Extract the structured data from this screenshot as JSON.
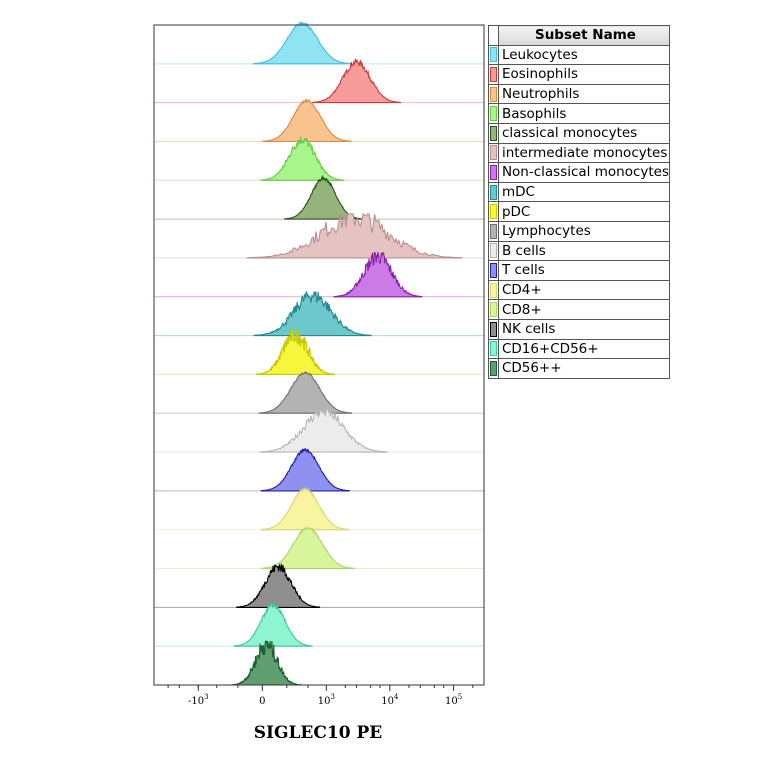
{
  "legend_header": "Subset Name",
  "chart_data": {
    "type": "area",
    "xlabel": "SIGLEC10 PE",
    "x_ticks": [
      {
        "base": "-10",
        "exp": "3",
        "value": -1000
      },
      {
        "base": "0",
        "exp": "",
        "value": 0
      },
      {
        "base": "10",
        "exp": "3",
        "value": 1000
      },
      {
        "base": "10",
        "exp": "4",
        "value": 10000
      },
      {
        "base": "10",
        "exp": "5",
        "value": 100000
      }
    ],
    "x_range": [
      -5000,
      300000
    ],
    "series": [
      {
        "name": "Leukocytes",
        "color": "#8fe3f3",
        "line": "#3fbfd9",
        "center": 400,
        "width": 1.0,
        "noise": 0.03
      },
      {
        "name": "Eosinophils",
        "color": "#f79b9b",
        "line": "#c83c3c",
        "center": 3000,
        "width": 0.9,
        "noise": 0.08
      },
      {
        "name": "Neutrophils",
        "color": "#f9c38f",
        "line": "#d98a3c",
        "center": 480,
        "width": 0.9,
        "noise": 0.03
      },
      {
        "name": "Basophils",
        "color": "#a8f58c",
        "line": "#6cc84a",
        "center": 400,
        "width": 0.85,
        "noise": 0.12
      },
      {
        "name": "classical monocytes",
        "color": "#94b47c",
        "line": "#2f4f1f",
        "center": 900,
        "width": 0.8,
        "noise": 0.04
      },
      {
        "name": "intermediate monocytes",
        "color": "#e6c3c3",
        "line": "#b88f8f",
        "center": 2800,
        "width": 2.2,
        "noise": 0.3
      },
      {
        "name": "Non-classical monocytes",
        "color": "#cc7ae6",
        "line": "#8a1fa8",
        "center": 6500,
        "width": 0.9,
        "noise": 0.2
      },
      {
        "name": "mDC",
        "color": "#6cc8cc",
        "line": "#1f8a8f",
        "center": 600,
        "width": 1.2,
        "noise": 0.2
      },
      {
        "name": "pDC",
        "color": "#f6f63c",
        "line": "#c8c800",
        "center": 300,
        "width": 0.8,
        "noise": 0.25
      },
      {
        "name": "Lymphocytes",
        "color": "#b3b3b3",
        "line": "#6e6e6e",
        "center": 450,
        "width": 0.95,
        "noise": 0.03
      },
      {
        "name": "B cells",
        "color": "#ececec",
        "line": "#b5b5b5",
        "center": 900,
        "width": 1.3,
        "noise": 0.15
      },
      {
        "name": "T cells",
        "color": "#9090f0",
        "line": "#1f1fa8",
        "center": 450,
        "width": 0.9,
        "noise": 0.04
      },
      {
        "name": "CD4+",
        "color": "#f8f4a0",
        "line": "#d8d47a",
        "center": 450,
        "width": 0.9,
        "noise": 0.03
      },
      {
        "name": "CD8+",
        "color": "#d8f59b",
        "line": "#a8d864",
        "center": 500,
        "width": 0.95,
        "noise": 0.03
      },
      {
        "name": "NK cells",
        "color": "#8f8f8f",
        "line": "#000000",
        "center": 120,
        "width": 0.85,
        "noise": 0.12
      },
      {
        "name": "CD16+CD56+",
        "color": "#8ff5d0",
        "line": "#3cc89b",
        "center": 80,
        "width": 0.8,
        "noise": 0.06
      },
      {
        "name": "CD56++",
        "color": "#5f9f6f",
        "line": "#1f5f2f",
        "center": 30,
        "width": 0.7,
        "noise": 0.25
      }
    ]
  }
}
